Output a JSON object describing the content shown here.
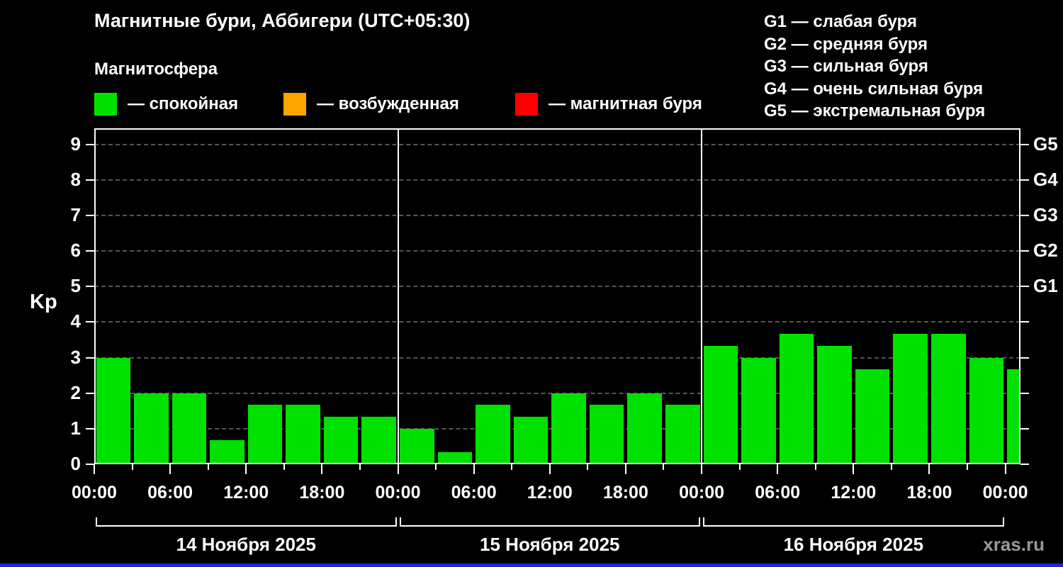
{
  "header": {
    "title": "Магнитные бури, Аббигери (UTC+05:30)",
    "subtitle": "Магнитосфера"
  },
  "legend": {
    "items": [
      {
        "name": "quiet",
        "label": "— спокойная",
        "color": "#00e100"
      },
      {
        "name": "unsettled",
        "label": "— возбужденная",
        "color": "#ffa500"
      },
      {
        "name": "storm",
        "label": "— магнитная буря",
        "color": "#ff0000"
      }
    ]
  },
  "storm_scale": {
    "items": [
      "G1 — слабая буря",
      "G2 — средняя буря",
      "G3 — сильная буря",
      "G4 — очень сильная буря",
      "G5 — экстремальная буря"
    ]
  },
  "chart_data": {
    "type": "bar",
    "title": "Магнитные бури, Аббигери (UTC+05:30)",
    "ylabel": "Kp",
    "xlabel": "",
    "ylim": [
      0,
      9.45
    ],
    "y_ticks": [
      0,
      1,
      2,
      3,
      4,
      5,
      6,
      7,
      8,
      9
    ],
    "right_axis_labels": [
      {
        "value": 5,
        "label": "G1"
      },
      {
        "value": 6,
        "label": "G2"
      },
      {
        "value": 7,
        "label": "G3"
      },
      {
        "value": 8,
        "label": "G4"
      },
      {
        "value": 9,
        "label": "G5"
      }
    ],
    "x_tick_labels": [
      "00:00",
      "06:00",
      "12:00",
      "18:00",
      "00:00",
      "06:00",
      "12:00",
      "18:00",
      "00:00",
      "06:00",
      "12:00",
      "18:00",
      "00:00"
    ],
    "hours_per_bar": 3,
    "bar_color": "#00e100",
    "grid": "horizontal-dashed",
    "days": [
      {
        "date": "14 Ноября 2025",
        "values": [
          3,
          2,
          2,
          0.67,
          1.67,
          1.67,
          1.33,
          1.33
        ]
      },
      {
        "date": "15 Ноября 2025",
        "values": [
          1,
          0.33,
          1.67,
          1.33,
          2,
          1.67,
          2,
          1.67
        ]
      },
      {
        "date": "16 Ноября 2025",
        "values": [
          3.33,
          3,
          3.67,
          3.33,
          2.67,
          3.67,
          3.67,
          3
        ]
      }
    ],
    "partial_next_bar_value": 2.67
  },
  "footer": {
    "watermark": "xras.ru",
    "accent_strip_color": "#2222dd"
  }
}
